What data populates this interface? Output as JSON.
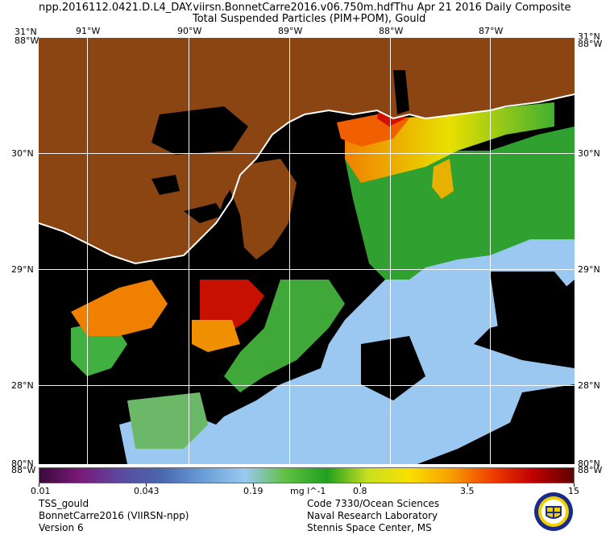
{
  "header": {
    "line1_left": "npp.2016112.0421.D.L4_DAY.viirsn.BonnetCarre2016.v06.750m.hdf",
    "line1_right": "Thu Apr 21 2016 Daily Composite",
    "line2": "Total Suspended Particles (PIM+POM), Gould"
  },
  "axes": {
    "lon_top": [
      "91°W",
      "90°W",
      "89°W",
      "88°W",
      "87°W"
    ],
    "lat_left": [
      "31°N",
      "30°N",
      "29°N",
      "28°N"
    ],
    "lat_right": [
      "31°N",
      "30°N",
      "29°N",
      "28°N"
    ],
    "corner_top_left_lat": "31°N",
    "corner_top_left_lon": "88°W",
    "corner_top_right_lat": "31°N",
    "corner_top_right_lon": "88°W",
    "corner_bottom_left_lat": "80°N",
    "corner_bottom_left_lon": "88°W",
    "corner_bottom_right_lat": "80°N",
    "corner_bottom_right_lon": "88°W"
  },
  "colorbar": {
    "ticks": [
      "0.01",
      "0.043",
      "0.19",
      "0.8",
      "3.5",
      "15"
    ],
    "unit": "mg l^-1",
    "colors": [
      "#3a0a3a",
      "#7a1a7a",
      "#5a4aa0",
      "#4a68b0",
      "#6aa0d8",
      "#9ac8f0",
      "#60c040",
      "#20a020",
      "#c8e020",
      "#f8e000",
      "#f8a000",
      "#f04000",
      "#c00000",
      "#600000"
    ]
  },
  "footer": {
    "left": [
      "TSS_gould",
      "BonnetCarre2016 (VIIRSN-npp)",
      "Version 6"
    ],
    "right": [
      "Code 7330/Ocean Sciences",
      "Naval Research Laboratory",
      "Stennis Space Center, MS"
    ]
  },
  "map_colors": {
    "land": "#8b4513",
    "nodata": "#000000",
    "coast": "#ffffff",
    "low": "#9ac8f0",
    "mid_green": "#30a030",
    "yellow": "#e8e000",
    "orange": "#f09000",
    "red": "#d01000"
  },
  "logo_name": "nrl-seal"
}
